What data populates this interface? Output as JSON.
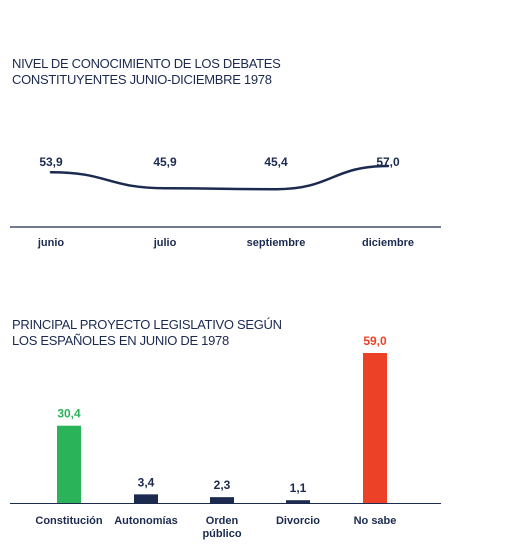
{
  "chart_data": [
    {
      "type": "line",
      "title": "NIVEL DE CONOCIMIENTO DE LOS DEBATES CONSTITUYENTES JUNIO-DICIEMBRE 1978",
      "categories": [
        "junio",
        "julio",
        "septiembre",
        "diciembre"
      ],
      "values": [
        53.9,
        45.9,
        45.4,
        57.0
      ],
      "labels": [
        "53,9",
        "45,9",
        "45,4",
        "57,0"
      ],
      "color": "#1c2a4f",
      "grid": false
    },
    {
      "type": "bar",
      "title": "PRINCIPAL PROYECTO LEGISLATIVO SEGÚN LOS ESPAÑOLES EN JUNIO DE 1978",
      "categories": [
        "Constitución",
        "Autonomías",
        "Orden público",
        "Divorcio",
        "No sabe"
      ],
      "values": [
        30.4,
        3.4,
        2.3,
        1.1,
        59.0
      ],
      "labels": [
        "30,4",
        "3,4",
        "2,3",
        "1,1",
        "59,0"
      ],
      "bar_colors": [
        "#2bb35a",
        "#1c2a4f",
        "#1c2a4f",
        "#1c2a4f",
        "#ec4126"
      ],
      "label_colors": [
        "#2bb35a",
        "#1c2a4f",
        "#1c2a4f",
        "#1c2a4f",
        "#ec4126"
      ],
      "grid": false
    }
  ]
}
